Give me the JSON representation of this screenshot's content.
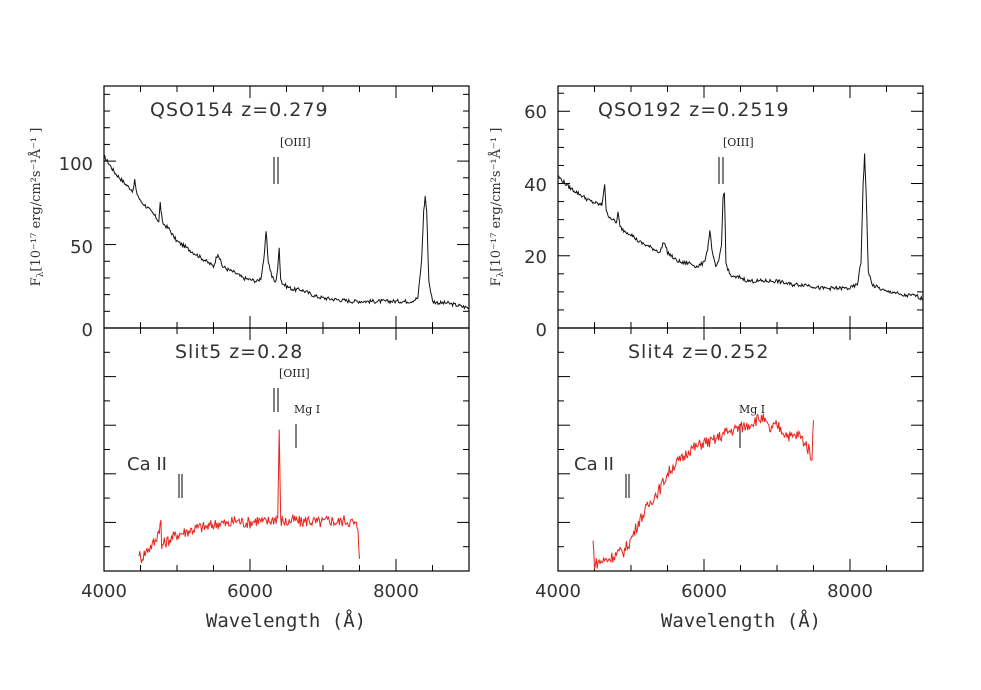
{
  "colors": {
    "top_spectrum": "#111111",
    "bottom_spectrum": "#e8241c",
    "axes": "#000000"
  },
  "chart_data": [
    {
      "type": "line",
      "panel": "left",
      "title": "QSO154  z=0.279",
      "xlabel": "Wavelength (Å)",
      "ylabel": "F",
      "ylabel_sub": "λ",
      "ylabel_rest": "[10⁻¹⁷ erg/cm²s⁻¹Å⁻¹ ]",
      "xlim": [
        4000,
        9000
      ],
      "ylim": [
        0,
        145
      ],
      "x_ticks": [
        4000,
        6000,
        8000
      ],
      "x_tick_labels": [
        "4000",
        "6000",
        "8000"
      ],
      "y_ticks": [
        0,
        50,
        100
      ],
      "y_tick_labels": [
        "0",
        "50",
        "100"
      ],
      "series": [
        {
          "name": "QSO spectrum",
          "x": [
            4000,
            4150,
            4300,
            4400,
            4420,
            4440,
            4500,
            4600,
            4700,
            4750,
            4770,
            4800,
            4900,
            4950,
            5000,
            5100,
            5200,
            5300,
            5400,
            5500,
            5560,
            5620,
            5700,
            5800,
            5900,
            6000,
            6100,
            6150,
            6200,
            6220,
            6250,
            6300,
            6350,
            6380,
            6400,
            6420,
            6440,
            6500,
            6600,
            6700,
            6800,
            6900,
            7000,
            7200,
            7400,
            7500,
            7600,
            7800,
            8000,
            8200,
            8300,
            8350,
            8380,
            8400,
            8420,
            8450,
            8500,
            8600,
            8700,
            8800,
            8900,
            9000
          ],
          "y": [
            103,
            93,
            86,
            82,
            89,
            82,
            76,
            72,
            67,
            64,
            75,
            63,
            59,
            55,
            52,
            49,
            46,
            43,
            40,
            37,
            45,
            37,
            35,
            33,
            30,
            29,
            28,
            30,
            45,
            58,
            40,
            31,
            27,
            36,
            48,
            30,
            27,
            25,
            23,
            23,
            21,
            19,
            18,
            17,
            16,
            16,
            16,
            16,
            16,
            16,
            18,
            40,
            70,
            79,
            70,
            28,
            16,
            15,
            15,
            14,
            13,
            12
          ]
        }
      ],
      "annotations": [
        {
          "text": "[OIII]",
          "x": [
            6360,
            6400
          ]
        }
      ]
    },
    {
      "type": "line",
      "panel": "left",
      "title": "Slit5  z=0.28",
      "xlabel": "Wavelength (Å)",
      "xlim": [
        4000,
        9000
      ],
      "ylim": [
        0,
        1
      ],
      "x_ticks": [
        4000,
        6000,
        8000
      ],
      "x_tick_labels": [
        "4000",
        "6000",
        "8000"
      ],
      "series": [
        {
          "name": "Slit spectrum",
          "x": [
            4480,
            4500,
            4600,
            4700,
            4780,
            4790,
            4800,
            4900,
            5000,
            5100,
            5200,
            5300,
            5400,
            5500,
            5600,
            5700,
            5800,
            5900,
            6000,
            6100,
            6200,
            6300,
            6380,
            6400,
            6420,
            6440,
            6500,
            6600,
            6700,
            6800,
            6900,
            7000,
            7100,
            7200,
            7300,
            7400,
            7480,
            7500
          ],
          "y": [
            0.08,
            0.05,
            0.09,
            0.12,
            0.2,
            0.09,
            0.11,
            0.13,
            0.15,
            0.16,
            0.17,
            0.18,
            0.18,
            0.19,
            0.2,
            0.19,
            0.21,
            0.2,
            0.2,
            0.21,
            0.2,
            0.21,
            0.22,
            0.59,
            0.2,
            0.21,
            0.2,
            0.21,
            0.2,
            0.21,
            0.2,
            0.2,
            0.21,
            0.2,
            0.21,
            0.2,
            0.18,
            0.05
          ]
        }
      ],
      "annotations": [
        {
          "text": "[OIII]",
          "x": [
            6360,
            6400
          ]
        },
        {
          "text": "Mg I",
          "x": [
            6620
          ]
        },
        {
          "text": "Ca II",
          "x": [
            5040,
            5070
          ]
        }
      ]
    },
    {
      "type": "line",
      "panel": "right",
      "title": "QSO192  z=0.2519",
      "xlabel": "Wavelength (Å)",
      "ylabel": "F",
      "ylabel_sub": "λ",
      "ylabel_rest": "[10⁻¹⁷ erg/cm²s⁻¹Å⁻¹ ]",
      "xlim": [
        4000,
        9000
      ],
      "ylim": [
        0,
        67
      ],
      "x_ticks": [
        4000,
        6000,
        8000
      ],
      "x_tick_labels": [
        "4000",
        "6000",
        "8000"
      ],
      "y_ticks": [
        0,
        20,
        40,
        60
      ],
      "y_tick_labels": [
        "0",
        "20",
        "40",
        "60"
      ],
      "series": [
        {
          "name": "QSO spectrum",
          "x": [
            4000,
            4150,
            4300,
            4450,
            4600,
            4640,
            4660,
            4700,
            4800,
            4820,
            4850,
            4900,
            5000,
            5100,
            5200,
            5300,
            5400,
            5450,
            5500,
            5600,
            5700,
            5800,
            5900,
            6000,
            6050,
            6080,
            6120,
            6160,
            6200,
            6240,
            6260,
            6280,
            6300,
            6350,
            6400,
            6500,
            6600,
            6800,
            7000,
            7200,
            7400,
            7600,
            7800,
            8000,
            8100,
            8150,
            8180,
            8200,
            8220,
            8250,
            8300,
            8400,
            8500,
            8600,
            8700,
            8800,
            8900,
            9000
          ],
          "y": [
            42,
            39,
            37,
            35,
            34,
            40,
            32,
            31,
            29,
            32,
            28,
            27,
            26,
            24,
            23,
            22,
            21,
            24,
            21,
            19,
            18,
            18,
            17,
            18,
            22,
            27,
            20,
            17,
            18,
            23,
            36,
            38,
            18,
            15,
            14,
            14,
            13,
            13,
            13,
            12,
            12,
            11,
            11,
            11,
            12,
            18,
            40,
            48,
            38,
            16,
            12,
            11,
            10,
            10,
            9,
            9,
            9,
            8
          ]
        }
      ],
      "annotations": [
        {
          "text": "[OIII]",
          "x": [
            6200,
            6245
          ]
        }
      ]
    },
    {
      "type": "line",
      "panel": "right",
      "title": "Slit4  z=0.252",
      "xlabel": "Wavelength (Å)",
      "xlim": [
        4000,
        9000
      ],
      "ylim": [
        0,
        1
      ],
      "x_ticks": [
        4000,
        6000,
        8000
      ],
      "x_tick_labels": [
        "4000",
        "6000",
        "8000"
      ],
      "series": [
        {
          "name": "Slit spectrum",
          "x": [
            4480,
            4500,
            4600,
            4700,
            4800,
            4900,
            5000,
            5100,
            5200,
            5300,
            5400,
            5500,
            5600,
            5700,
            5800,
            5900,
            6000,
            6100,
            6200,
            6300,
            6400,
            6500,
            6600,
            6700,
            6800,
            6900,
            7000,
            7100,
            7200,
            7300,
            7400,
            7480,
            7500
          ],
          "y": [
            0.12,
            0.03,
            0.04,
            0.05,
            0.07,
            0.08,
            0.13,
            0.2,
            0.25,
            0.3,
            0.34,
            0.4,
            0.44,
            0.46,
            0.5,
            0.51,
            0.53,
            0.53,
            0.55,
            0.57,
            0.58,
            0.59,
            0.6,
            0.62,
            0.63,
            0.58,
            0.6,
            0.57,
            0.55,
            0.56,
            0.52,
            0.47,
            0.62
          ]
        }
      ],
      "annotations": [
        {
          "text": "Mg I",
          "x": [
            6480
          ]
        },
        {
          "text": "Ca II",
          "x": [
            4920,
            4960
          ]
        }
      ]
    }
  ]
}
